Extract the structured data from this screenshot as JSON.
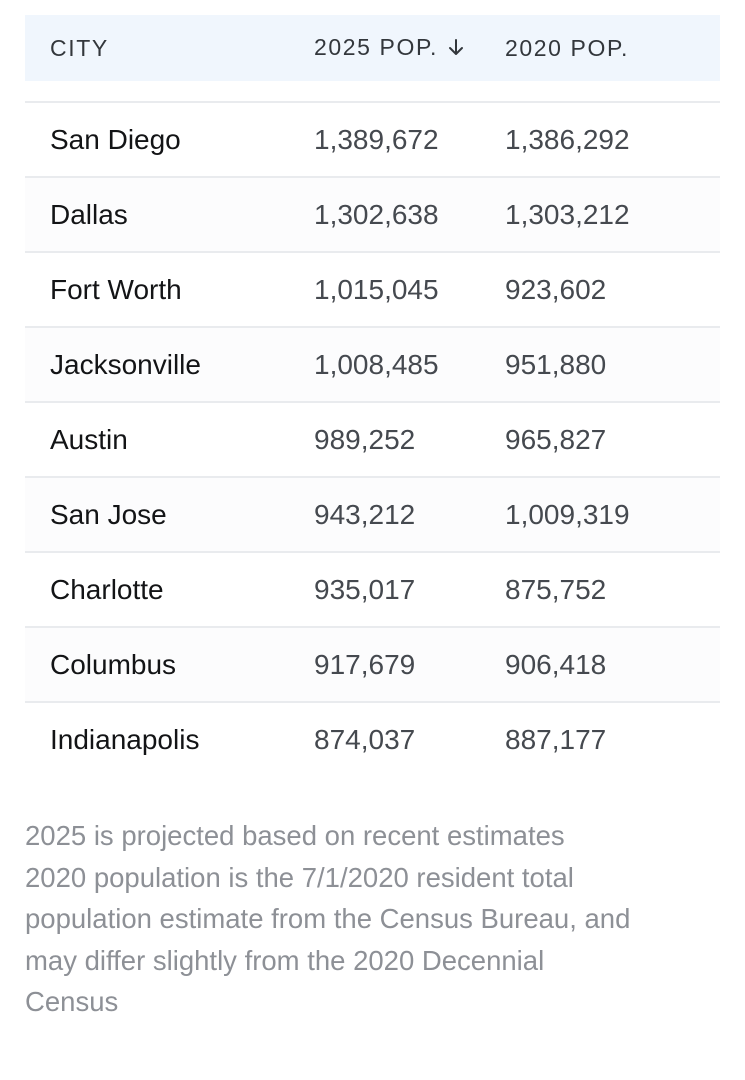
{
  "table": {
    "headers": {
      "city": "CITY",
      "pop_2025": "2025 POP.",
      "pop_2020": "2020 POP."
    },
    "sort": {
      "column": "pop_2025",
      "direction": "descending",
      "icon": "arrow-down-icon"
    },
    "rows": [
      {
        "city": "San Diego",
        "pop_2025": "1,389,672",
        "pop_2020": "1,386,292"
      },
      {
        "city": "Dallas",
        "pop_2025": "1,302,638",
        "pop_2020": "1,303,212"
      },
      {
        "city": "Fort Worth",
        "pop_2025": "1,015,045",
        "pop_2020": "923,602"
      },
      {
        "city": "Jacksonville",
        "pop_2025": "1,008,485",
        "pop_2020": "951,880"
      },
      {
        "city": "Austin",
        "pop_2025": "989,252",
        "pop_2020": "965,827"
      },
      {
        "city": "San Jose",
        "pop_2025": "943,212",
        "pop_2020": "1,009,319"
      },
      {
        "city": "Charlotte",
        "pop_2025": "935,017",
        "pop_2020": "875,752"
      },
      {
        "city": "Columbus",
        "pop_2025": "917,679",
        "pop_2020": "906,418"
      },
      {
        "city": "Indianapolis",
        "pop_2025": "874,037",
        "pop_2020": "887,177"
      }
    ]
  },
  "footnote": {
    "lines": [
      "2025 is projected based on recent estimates",
      "2020 population is the 7/1/2020 resident total",
      "population estimate from the Census Bureau, and",
      "may differ slightly from the 2020 Decennial",
      "Census"
    ]
  },
  "colors": {
    "header_background": "#f0f6fd",
    "header_text": "#33373c",
    "city_text": "#131416",
    "number_text": "#45494f",
    "row_divider": "#e9ebee",
    "footnote_text": "#8d9096"
  }
}
